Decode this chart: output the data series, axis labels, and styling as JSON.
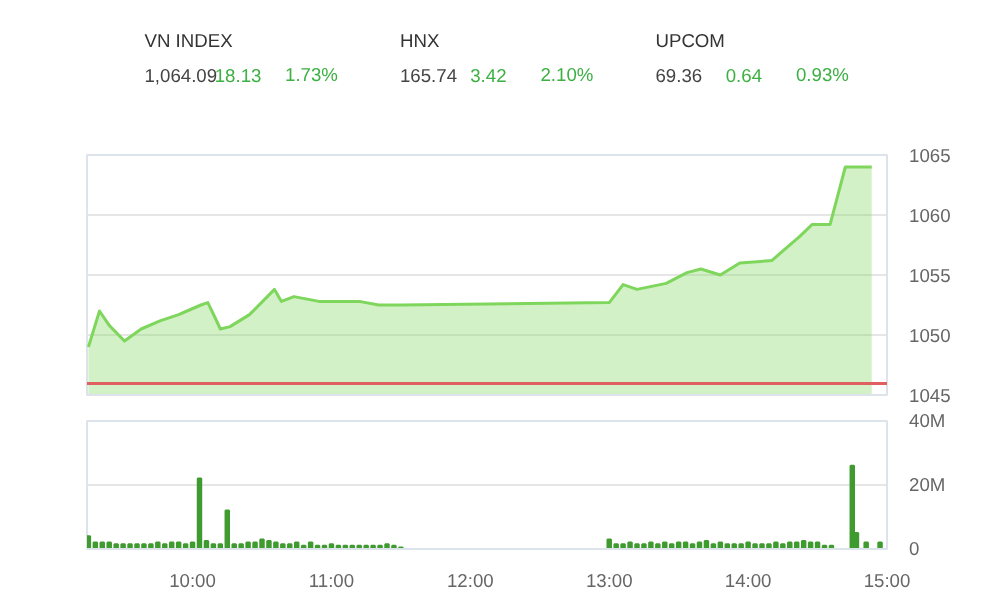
{
  "chart_data": [
    {
      "type": "other",
      "annotations": [
        "VN INDEX",
        "1,064.09",
        "18.13",
        "1.73%",
        "HNX",
        "165.74",
        "3.42",
        "2.10%",
        "UPCOM",
        "69.36",
        "0.64",
        "0.93%"
      ],
      "colors": [
        "#333333",
        "#444444",
        "#3cb043",
        "#3cb043"
      ]
    },
    {
      "type": "area",
      "x": [
        9.25,
        9.33,
        9.4,
        9.51,
        9.63,
        9.77,
        9.9,
        9.96,
        10.06,
        10.11,
        10.16,
        10.2,
        10.27,
        10.41,
        10.59,
        10.64,
        10.73,
        10.91,
        11.2,
        11.34,
        11.5,
        13.0,
        13.1,
        13.2,
        13.41,
        13.56,
        13.66,
        13.8,
        13.94,
        14.17,
        14.23,
        14.37,
        14.46,
        14.59,
        14.7,
        14.89
      ],
      "values": [
        1049.0,
        1052.0,
        1050.8,
        1049.5,
        1050.5,
        1051.2,
        1051.7,
        1052.0,
        1052.5,
        1052.7,
        1051.5,
        1050.5,
        1050.7,
        1051.7,
        1053.8,
        1052.8,
        1053.2,
        1052.8,
        1052.8,
        1052.5,
        1052.5,
        1052.7,
        1054.2,
        1053.8,
        1054.3,
        1055.2,
        1055.5,
        1055.0,
        1056.0,
        1056.2,
        1056.8,
        1058.2,
        1059.2,
        1059.2,
        1064.0,
        1064.0
      ],
      "color": "#7fd65c",
      "xlim": [
        9.24,
        15.0
      ],
      "ylim": [
        1045,
        1065
      ],
      "yticks": [
        1045,
        1050,
        1055,
        1060,
        1065
      ],
      "xticks": [
        {
          "value": 10,
          "label": null
        },
        {
          "value": 11,
          "label": null
        },
        {
          "value": 12,
          "label": null
        },
        {
          "value": 13,
          "label": null
        },
        {
          "value": 14,
          "label": null
        },
        {
          "value": 15,
          "label": null
        }
      ],
      "ref_lines": [
        {
          "axis": "y",
          "value": 1045.96,
          "color": "#e06060"
        }
      ],
      "grid": "y",
      "tick_labels": "y"
    },
    {
      "type": "bar",
      "x": [
        9.25,
        9.3,
        9.35,
        9.4,
        9.45,
        9.5,
        9.55,
        9.6,
        9.65,
        9.7,
        9.75,
        9.8,
        9.85,
        9.9,
        9.95,
        10.0,
        10.05,
        10.1,
        10.15,
        10.2,
        10.25,
        10.3,
        10.35,
        10.4,
        10.45,
        10.5,
        10.55,
        10.6,
        10.65,
        10.7,
        10.75,
        10.8,
        10.85,
        10.9,
        10.95,
        11.0,
        11.05,
        11.1,
        11.15,
        11.2,
        11.25,
        11.3,
        11.35,
        11.4,
        11.45,
        11.5,
        13.0,
        13.05,
        13.1,
        13.15,
        13.2,
        13.25,
        13.3,
        13.35,
        13.4,
        13.45,
        13.5,
        13.55,
        13.6,
        13.65,
        13.7,
        13.75,
        13.8,
        13.85,
        13.9,
        13.95,
        14.0,
        14.05,
        14.1,
        14.15,
        14.2,
        14.25,
        14.3,
        14.35,
        14.4,
        14.45,
        14.5,
        14.55,
        14.6,
        14.75,
        14.78,
        14.85,
        14.95
      ],
      "values": [
        4,
        2,
        2,
        2,
        1.5,
        1.5,
        1.5,
        1.5,
        1.5,
        1.5,
        2,
        1.5,
        2,
        2,
        1.5,
        2,
        22,
        2.5,
        1.5,
        1.5,
        12,
        1.5,
        1.5,
        2,
        2,
        3,
        2.5,
        2,
        1.5,
        1.5,
        2,
        1,
        2,
        1,
        1,
        1.5,
        1,
        1,
        1,
        1,
        1,
        1,
        1,
        1.5,
        1,
        0.5,
        3,
        1.5,
        1.5,
        2,
        1.5,
        1.5,
        2,
        1.5,
        2,
        1.5,
        2,
        2,
        1.5,
        2,
        2.5,
        1.5,
        2,
        1.5,
        1.5,
        1.5,
        2,
        1.5,
        1.5,
        1.5,
        2,
        1.5,
        2,
        2,
        2.5,
        2,
        2,
        1,
        1,
        26,
        5,
        2,
        2
      ],
      "color": "#3f9b2f",
      "xlim": [
        9.24,
        15.0
      ],
      "ylim": [
        0,
        40
      ],
      "yticks": [
        0,
        {
          "value": 20,
          "label": "20M"
        },
        {
          "value": 40,
          "label": "40M"
        }
      ],
      "xticks": [
        {
          "value": 10,
          "label": "10:00"
        },
        {
          "value": 11,
          "label": "11:00"
        },
        {
          "value": 12,
          "label": "12:00"
        },
        {
          "value": 13,
          "label": "13:00"
        },
        {
          "value": 14,
          "label": "14:00"
        },
        {
          "value": 15,
          "label": "15:00"
        }
      ],
      "grid": "y"
    }
  ]
}
